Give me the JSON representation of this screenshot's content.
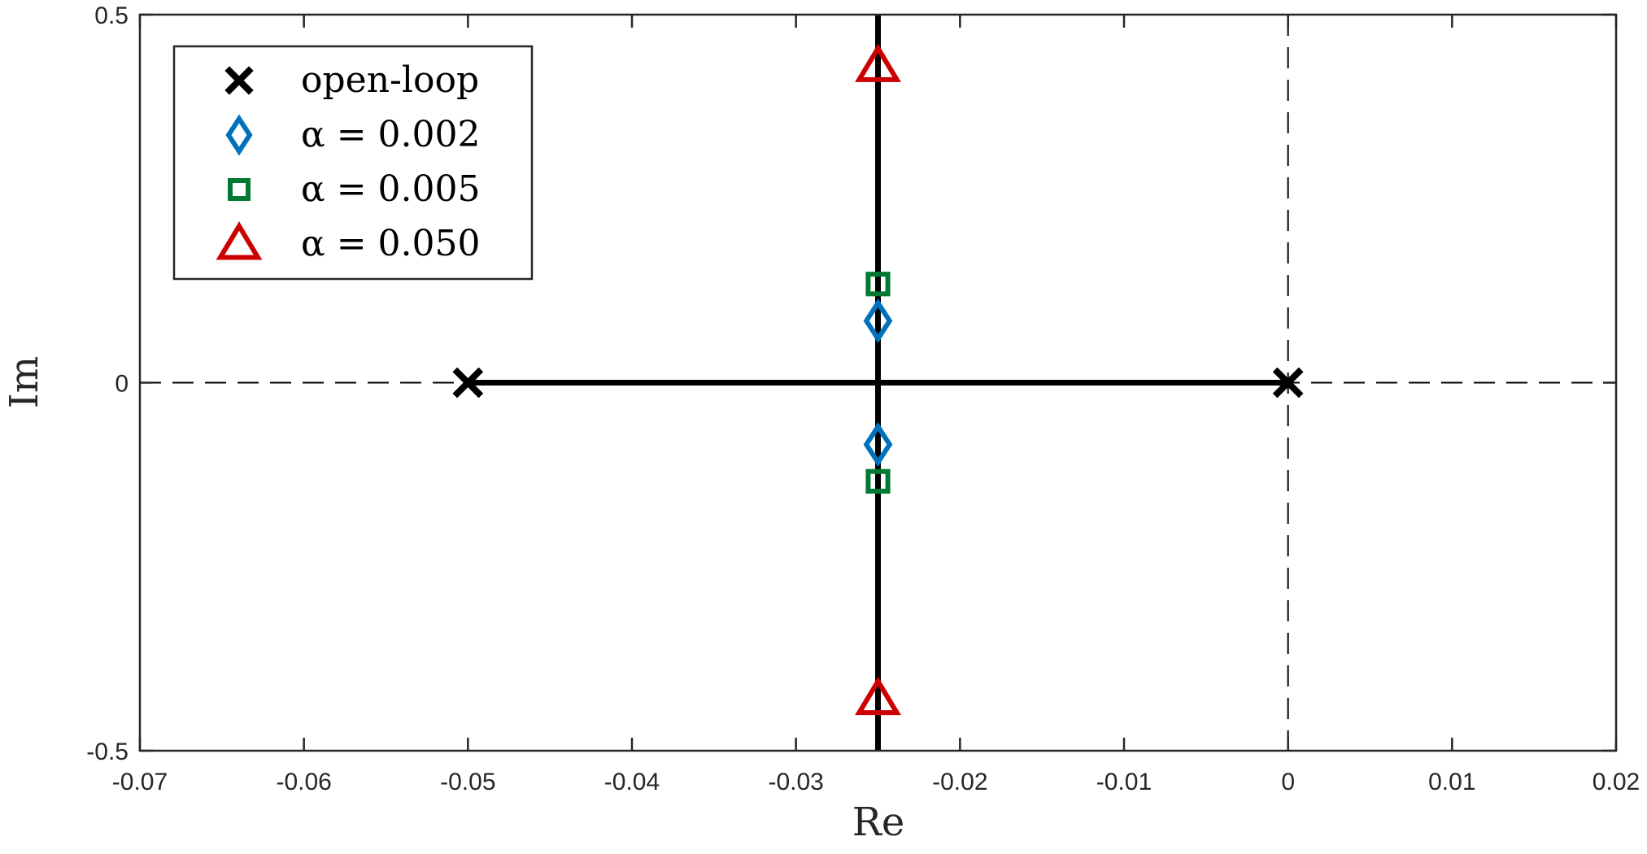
{
  "chart_data": {
    "type": "scatter",
    "title": "",
    "xlabel": "Re",
    "ylabel": "Im",
    "xlim": [
      -0.07,
      0.02
    ],
    "ylim": [
      -0.5,
      0.5
    ],
    "xticks": [
      -0.07,
      -0.06,
      -0.05,
      -0.04,
      -0.03,
      -0.02,
      -0.01,
      0,
      0.01,
      0.02
    ],
    "xtick_labels": [
      "-0.07",
      "-0.06",
      "-0.05",
      "-0.04",
      "-0.03",
      "-0.02",
      "-0.01",
      "0",
      "0.01",
      "0.02"
    ],
    "yticks": [
      -0.5,
      0,
      0.5
    ],
    "ytick_labels": [
      "-0.5",
      "0",
      "0.5"
    ],
    "grid": false,
    "legend_position": "top-left",
    "reference_lines": [
      {
        "orientation": "horizontal",
        "value": 0,
        "style": "dashed"
      },
      {
        "orientation": "vertical",
        "value": 0,
        "style": "dashed"
      }
    ],
    "locus": [
      {
        "from": [
          -0.05,
          0
        ],
        "to": [
          0,
          0
        ]
      },
      {
        "from": [
          -0.025,
          -0.5
        ],
        "to": [
          -0.025,
          0.5
        ]
      }
    ],
    "series": [
      {
        "name": "open-loop",
        "marker": "x",
        "color": "#000000",
        "points": [
          {
            "x": -0.05,
            "y": 0
          },
          {
            "x": 0,
            "y": 0
          }
        ]
      },
      {
        "name": "α = 0.002",
        "marker": "diamond",
        "color": "#0072BD",
        "points": [
          {
            "x": -0.025,
            "y": 0.084
          },
          {
            "x": -0.025,
            "y": -0.084
          }
        ]
      },
      {
        "name": "α = 0.005",
        "marker": "square",
        "color": "#007A33",
        "points": [
          {
            "x": -0.025,
            "y": 0.134
          },
          {
            "x": -0.025,
            "y": -0.134
          }
        ]
      },
      {
        "name": "α = 0.050",
        "marker": "triangle",
        "color": "#CC0000",
        "points": [
          {
            "x": -0.025,
            "y": 0.43
          },
          {
            "x": -0.025,
            "y": -0.43
          }
        ]
      }
    ]
  }
}
